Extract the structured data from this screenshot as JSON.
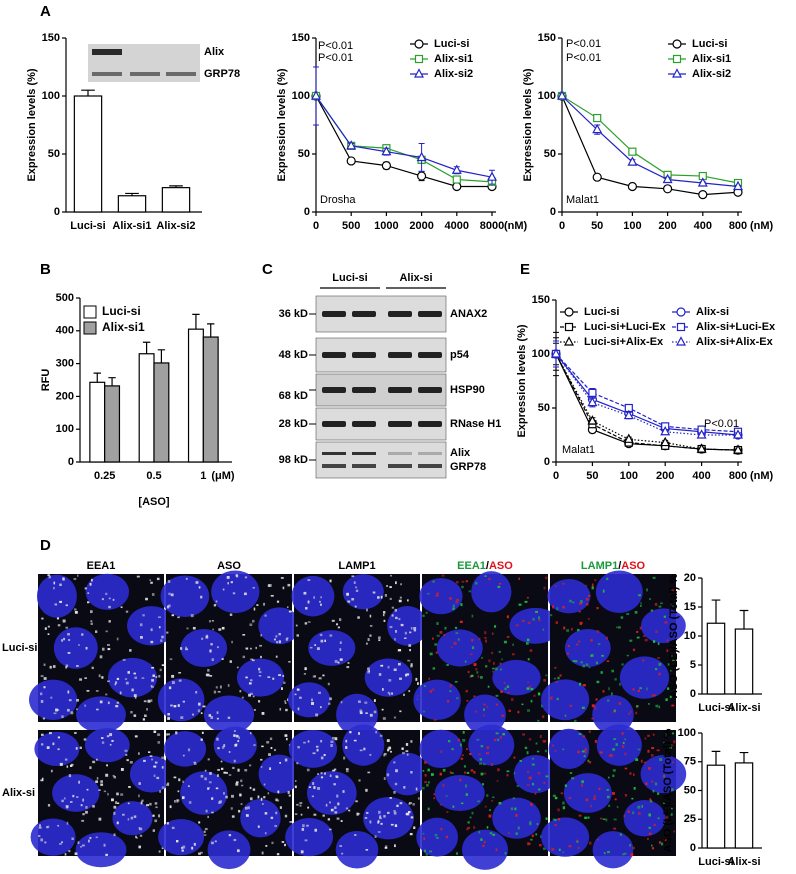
{
  "panel_labels": [
    "A",
    "B",
    "C",
    "D",
    "E"
  ],
  "blot_a": {
    "labels": [
      "Alix",
      "GRP78"
    ]
  },
  "blot_c": {
    "groups": [
      "Luci-si",
      "Alix-si"
    ],
    "rows": [
      {
        "marker": "36 kD",
        "protein": [
          "ANAX2"
        ]
      },
      {
        "marker": "48 kD",
        "protein": [
          "p54"
        ]
      },
      {
        "marker": "68 kD",
        "protein": [
          "HSP90"
        ]
      },
      {
        "marker": "28 kD",
        "protein": [
          "RNase H1"
        ]
      },
      {
        "marker": "98 kD",
        "protein": [
          "Alix",
          "GRP78"
        ]
      }
    ]
  },
  "micrographs": {
    "columns": [
      {
        "parts": [
          {
            "text": "EEA1",
            "color": "#000000"
          }
        ]
      },
      {
        "parts": [
          {
            "text": "ASO",
            "color": "#000000"
          }
        ]
      },
      {
        "parts": [
          {
            "text": "LAMP1",
            "color": "#000000"
          }
        ]
      },
      {
        "parts": [
          {
            "text": "EEA1",
            "color": "#1a9a3a"
          },
          {
            "text": "/",
            "color": "#000000"
          },
          {
            "text": "ASO",
            "color": "#e0101a"
          }
        ]
      },
      {
        "parts": [
          {
            "text": "LAMP1",
            "color": "#1a9a3a"
          },
          {
            "text": "/",
            "color": "#000000"
          },
          {
            "text": "ASO",
            "color": "#e0101a"
          }
        ]
      }
    ],
    "rows": [
      "Luci-si",
      "Alix-si"
    ]
  },
  "chart_data": [
    {
      "type": "bar",
      "ylabel": "Expression levels (%)",
      "categories": [
        "Luci-si",
        "Alix-si1",
        "Alix-si2"
      ],
      "values": [
        100,
        14,
        21
      ],
      "errors": [
        5,
        2,
        1.5
      ],
      "color": "#ffffff",
      "ylim": [
        0,
        150
      ],
      "yticks": [
        0,
        50,
        100,
        150
      ]
    },
    {
      "type": "line",
      "ylabel": "Expression levels (%)",
      "categories": [
        "0",
        "500",
        "1000",
        "2000",
        "4000",
        "8000"
      ],
      "x_unit": "(nM)",
      "ylim": [
        0,
        150
      ],
      "yticks": [
        0,
        50,
        100,
        150
      ],
      "legend": "upper right",
      "series": [
        {
          "name": "Luci-si",
          "color": "#000000",
          "marker": "circle",
          "dash": "solid",
          "values": [
            100,
            44,
            40,
            31,
            22,
            22
          ],
          "errors": [
            3,
            2,
            3,
            4,
            2,
            2
          ]
        },
        {
          "name": "Alix-si1",
          "color": "#2ca02c",
          "marker": "square",
          "dash": "solid",
          "values": [
            100,
            57,
            55,
            45,
            28,
            26
          ],
          "errors": [
            3,
            2,
            2,
            3,
            2,
            2
          ]
        },
        {
          "name": "Alix-si2",
          "color": "#2323c8",
          "marker": "triangle",
          "dash": "solid",
          "values": [
            100,
            57,
            52,
            47,
            36,
            30
          ],
          "errors": [
            25,
            2,
            3,
            12,
            3,
            6
          ]
        }
      ],
      "annotations": [
        {
          "text": "P<0.01",
          "color": "#2ca02c"
        },
        {
          "text": "P<0.01",
          "color": "#2323c8"
        },
        {
          "text": "Drosha",
          "color": "#000000"
        }
      ]
    },
    {
      "type": "line",
      "ylabel": "Expression levels (%)",
      "categories": [
        "0",
        "50",
        "100",
        "200",
        "400",
        "800"
      ],
      "x_unit": "(nM)",
      "ylim": [
        0,
        150
      ],
      "yticks": [
        0,
        50,
        100,
        150
      ],
      "legend": "upper right",
      "series": [
        {
          "name": "Luci-si",
          "color": "#000000",
          "marker": "circle",
          "dash": "solid",
          "values": [
            100,
            30,
            22,
            20,
            15,
            17
          ],
          "errors": [
            2,
            1,
            1,
            1,
            1,
            1
          ]
        },
        {
          "name": "Alix-si1",
          "color": "#2ca02c",
          "marker": "square",
          "dash": "solid",
          "values": [
            100,
            81,
            52,
            32,
            31,
            25
          ],
          "errors": [
            2,
            3,
            2,
            2,
            1,
            1
          ]
        },
        {
          "name": "Alix-si2",
          "color": "#2323c8",
          "marker": "triangle",
          "dash": "solid",
          "values": [
            100,
            71,
            43,
            28,
            25,
            22
          ],
          "errors": [
            2,
            4,
            2,
            2,
            1,
            1
          ]
        }
      ],
      "annotations": [
        {
          "text": "P<0.01",
          "color": "#2ca02c"
        },
        {
          "text": "P<0.01",
          "color": "#2323c8"
        },
        {
          "text": "Malat1",
          "color": "#000000"
        }
      ]
    },
    {
      "type": "grouped_bar",
      "xlabel": "[ASO]",
      "ylabel": "RFU",
      "categories": [
        "0.25",
        "0.5",
        "1"
      ],
      "x_unit": "(μM)",
      "ylim": [
        0,
        500
      ],
      "yticks": [
        0,
        100,
        200,
        300,
        400,
        500
      ],
      "legend": "upper left",
      "series": [
        {
          "name": "Luci-si",
          "color": "#ffffff",
          "values": [
            243,
            330,
            405
          ],
          "errors": [
            28,
            35,
            45
          ]
        },
        {
          "name": "Alix-si1",
          "color": "#a0a0a0",
          "values": [
            232,
            302,
            381
          ],
          "errors": [
            25,
            40,
            40
          ]
        }
      ]
    },
    {
      "type": "line",
      "ylabel": "Expression levels (%)",
      "categories": [
        "0",
        "50",
        "100",
        "200",
        "400",
        "800"
      ],
      "x_unit": "(nM)",
      "ylim": [
        0,
        150
      ],
      "yticks": [
        0,
        50,
        100,
        150
      ],
      "legend": "upper",
      "series": [
        {
          "name": "Luci-si",
          "color": "#000000",
          "marker": "circle",
          "dash": "solid",
          "values": [
            100,
            30,
            17,
            15,
            12,
            11
          ],
          "errors": [
            20,
            3,
            2,
            2,
            1,
            1
          ]
        },
        {
          "name": "Luci-si+Luci-Ex",
          "color": "#000000",
          "marker": "square",
          "dash": "dashed",
          "values": [
            100,
            35,
            18,
            15,
            12,
            11
          ],
          "errors": [
            15,
            3,
            2,
            2,
            1,
            1
          ]
        },
        {
          "name": "Luci-si+Alix-Ex",
          "color": "#000000",
          "marker": "triangle",
          "dash": "dotted",
          "values": [
            100,
            38,
            21,
            18,
            12,
            11
          ],
          "errors": [
            10,
            3,
            2,
            2,
            1,
            1
          ]
        },
        {
          "name": "Alix-si",
          "color": "#2323c8",
          "marker": "circle",
          "dash": "solid",
          "values": [
            100,
            58,
            45,
            31,
            28,
            25
          ],
          "errors": [
            12,
            4,
            3,
            2,
            2,
            2
          ]
        },
        {
          "name": "Alix-si+Luci-Ex",
          "color": "#2323c8",
          "marker": "square",
          "dash": "dashed",
          "values": [
            100,
            64,
            50,
            33,
            30,
            28
          ],
          "errors": [
            12,
            4,
            3,
            2,
            2,
            2
          ]
        },
        {
          "name": "Alix-si+Alix-Ex",
          "color": "#2323c8",
          "marker": "triangle",
          "dash": "dotted",
          "values": [
            100,
            55,
            43,
            28,
            25,
            25
          ],
          "errors": [
            12,
            4,
            3,
            2,
            2,
            2
          ]
        }
      ],
      "annotations": [
        {
          "text": "P<0.01",
          "color": "#2323c8"
        },
        {
          "text": "Malat1",
          "color": "#000000"
        }
      ]
    },
    {
      "type": "bar",
      "ylabel": "ASO (EE)/ASO (Total) %",
      "categories": [
        "Luci-si",
        "Alix-si"
      ],
      "values": [
        12.2,
        11.2
      ],
      "errors": [
        4,
        3.2
      ],
      "color": "#ffffff",
      "ylim": [
        0,
        20
      ],
      "yticks": [
        0,
        5,
        10,
        15,
        20
      ]
    },
    {
      "type": "bar",
      "ylabel": "ASO (LE)/ASO (Total) %",
      "categories": [
        "Luci-si",
        "Alix-si"
      ],
      "values": [
        72,
        74
      ],
      "errors": [
        12,
        9
      ],
      "color": "#ffffff",
      "ylim": [
        0,
        100
      ],
      "yticks": [
        0,
        25,
        50,
        75,
        100
      ]
    }
  ]
}
